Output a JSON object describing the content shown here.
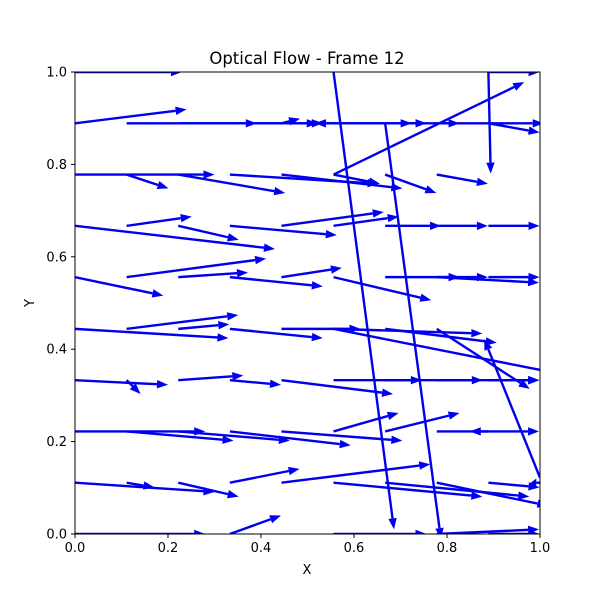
{
  "chart_data": {
    "type": "quiver",
    "title": "Optical Flow - Frame 12",
    "xlabel": "X",
    "ylabel": "Y",
    "xlim": [
      0,
      1
    ],
    "ylim": [
      0,
      1
    ],
    "xticks": [
      "0.0",
      "0.2",
      "0.4",
      "0.6",
      "0.8",
      "1.0"
    ],
    "yticks": [
      "0.0",
      "0.2",
      "0.4",
      "0.6",
      "0.8",
      "1.0"
    ],
    "grid": false,
    "arrow_color": "#0000ee",
    "vectors": [
      {
        "x": 0.0,
        "y": 1.0,
        "u": 0.23,
        "v": 0.0
      },
      {
        "x": 0.0,
        "y": 0.889,
        "u": 0.24,
        "v": 0.03
      },
      {
        "x": 0.111,
        "y": 0.889,
        "u": 0.28,
        "v": 0.0
      },
      {
        "x": 0.222,
        "y": 0.889,
        "u": 0.3,
        "v": 0.0
      },
      {
        "x": 0.333,
        "y": 0.889,
        "u": 0.2,
        "v": 0.0
      },
      {
        "x": 0.444,
        "y": 0.889,
        "u": 0.28,
        "v": 0.0
      },
      {
        "x": 0.444,
        "y": 0.889,
        "u": 0.04,
        "v": 0.01
      },
      {
        "x": 0.556,
        "y": 0.889,
        "u": 0.2,
        "v": 0.0
      },
      {
        "x": 0.556,
        "y": 0.889,
        "u": -0.04,
        "v": 0.0
      },
      {
        "x": 0.667,
        "y": 0.889,
        "u": 0.16,
        "v": 0.0
      },
      {
        "x": 0.778,
        "y": 0.889,
        "u": 0.23,
        "v": 0.0
      },
      {
        "x": 0.889,
        "y": 0.889,
        "u": 0.11,
        "v": -0.02
      },
      {
        "x": 0.667,
        "y": 0.889,
        "u": 0.12,
        "v": -0.9
      },
      {
        "x": 0.556,
        "y": 1.0,
        "u": 0.13,
        "v": -0.99
      },
      {
        "x": 0.556,
        "y": 0.778,
        "u": 0.41,
        "v": 0.2
      },
      {
        "x": 0.889,
        "y": 1.0,
        "u": 0.005,
        "v": -0.22
      },
      {
        "x": 0.889,
        "y": 1.0,
        "u": 0.11,
        "v": 0.0
      },
      {
        "x": 0.0,
        "y": 0.778,
        "u": 0.3,
        "v": 0.0
      },
      {
        "x": 0.111,
        "y": 0.778,
        "u": 0.09,
        "v": -0.03
      },
      {
        "x": 0.222,
        "y": 0.778,
        "u": 0.23,
        "v": -0.04
      },
      {
        "x": 0.333,
        "y": 0.778,
        "u": 0.32,
        "v": -0.02
      },
      {
        "x": 0.444,
        "y": 0.778,
        "u": 0.26,
        "v": -0.03
      },
      {
        "x": 0.556,
        "y": 0.778,
        "u": 0.1,
        "v": -0.02
      },
      {
        "x": 0.667,
        "y": 0.778,
        "u": 0.11,
        "v": -0.04
      },
      {
        "x": 0.778,
        "y": 0.778,
        "u": 0.11,
        "v": -0.02
      },
      {
        "x": 0.0,
        "y": 0.667,
        "u": 0.43,
        "v": -0.05
      },
      {
        "x": 0.111,
        "y": 0.667,
        "u": 0.14,
        "v": 0.02
      },
      {
        "x": 0.222,
        "y": 0.667,
        "u": 0.13,
        "v": -0.03
      },
      {
        "x": 0.333,
        "y": 0.667,
        "u": 0.23,
        "v": -0.02
      },
      {
        "x": 0.444,
        "y": 0.667,
        "u": 0.22,
        "v": 0.03
      },
      {
        "x": 0.556,
        "y": 0.667,
        "u": 0.14,
        "v": 0.02
      },
      {
        "x": 0.667,
        "y": 0.667,
        "u": 0.12,
        "v": 0.0
      },
      {
        "x": 0.778,
        "y": 0.667,
        "u": 0.11,
        "v": 0.0
      },
      {
        "x": 0.889,
        "y": 0.667,
        "u": 0.11,
        "v": 0.0
      },
      {
        "x": 0.0,
        "y": 0.556,
        "u": 0.19,
        "v": -0.04
      },
      {
        "x": 0.111,
        "y": 0.556,
        "u": 0.3,
        "v": 0.04
      },
      {
        "x": 0.222,
        "y": 0.556,
        "u": 0.15,
        "v": 0.01
      },
      {
        "x": 0.333,
        "y": 0.556,
        "u": 0.2,
        "v": -0.02
      },
      {
        "x": 0.444,
        "y": 0.556,
        "u": 0.13,
        "v": 0.02
      },
      {
        "x": 0.556,
        "y": 0.556,
        "u": 0.21,
        "v": -0.05
      },
      {
        "x": 0.667,
        "y": 0.556,
        "u": 0.16,
        "v": 0.0
      },
      {
        "x": 0.778,
        "y": 0.556,
        "u": 0.11,
        "v": 0.0
      },
      {
        "x": 0.889,
        "y": 0.556,
        "u": 0.11,
        "v": 0.0
      },
      {
        "x": 0.778,
        "y": 0.556,
        "u": 0.22,
        "v": -0.012
      },
      {
        "x": 0.0,
        "y": 0.444,
        "u": 0.33,
        "v": -0.02
      },
      {
        "x": 0.111,
        "y": 0.444,
        "u": 0.24,
        "v": 0.03
      },
      {
        "x": 0.222,
        "y": 0.444,
        "u": 0.11,
        "v": 0.01
      },
      {
        "x": 0.333,
        "y": 0.444,
        "u": 0.2,
        "v": -0.02
      },
      {
        "x": 0.444,
        "y": 0.444,
        "u": 0.17,
        "v": 0.0
      },
      {
        "x": 0.556,
        "y": 0.444,
        "u": 0.32,
        "v": -0.01
      },
      {
        "x": 0.667,
        "y": 0.444,
        "u": 0.24,
        "v": -0.03
      },
      {
        "x": 0.778,
        "y": 0.444,
        "u": 0.2,
        "v": -0.13
      },
      {
        "x": 0.556,
        "y": 0.444,
        "u": 0.5,
        "v": -0.1
      },
      {
        "x": 0.0,
        "y": 0.333,
        "u": 0.2,
        "v": -0.01
      },
      {
        "x": 0.111,
        "y": 0.333,
        "u": 0.03,
        "v": -0.03
      },
      {
        "x": 0.222,
        "y": 0.333,
        "u": 0.14,
        "v": 0.01
      },
      {
        "x": 0.333,
        "y": 0.333,
        "u": 0.11,
        "v": -0.01
      },
      {
        "x": 0.444,
        "y": 0.333,
        "u": 0.24,
        "v": -0.03
      },
      {
        "x": 0.556,
        "y": 0.333,
        "u": 0.19,
        "v": 0.0
      },
      {
        "x": 0.667,
        "y": 0.333,
        "u": 0.21,
        "v": 0.0
      },
      {
        "x": 0.778,
        "y": 0.333,
        "u": 0.22,
        "v": 0.0
      },
      {
        "x": 0.889,
        "y": 0.333,
        "u": 0.11,
        "v": 0.0
      },
      {
        "x": 0.0,
        "y": 0.222,
        "u": 0.28,
        "v": 0.0
      },
      {
        "x": 0.111,
        "y": 0.222,
        "u": 0.23,
        "v": -0.02
      },
      {
        "x": 0.222,
        "y": 0.222,
        "u": 0.24,
        "v": -0.02
      },
      {
        "x": 0.333,
        "y": 0.222,
        "u": 0.26,
        "v": -0.03
      },
      {
        "x": 0.444,
        "y": 0.222,
        "u": 0.26,
        "v": -0.02
      },
      {
        "x": 0.556,
        "y": 0.222,
        "u": 0.14,
        "v": 0.04
      },
      {
        "x": 0.667,
        "y": 0.222,
        "u": 0.16,
        "v": 0.04
      },
      {
        "x": 0.778,
        "y": 0.222,
        "u": 0.22,
        "v": 0.0
      },
      {
        "x": 0.889,
        "y": 0.222,
        "u": -0.04,
        "v": 0.0
      },
      {
        "x": 0.0,
        "y": 0.111,
        "u": 0.3,
        "v": -0.02
      },
      {
        "x": 0.111,
        "y": 0.111,
        "u": 0.06,
        "v": -0.01
      },
      {
        "x": 0.222,
        "y": 0.111,
        "u": 0.13,
        "v": -0.03
      },
      {
        "x": 0.333,
        "y": 0.111,
        "u": 0.15,
        "v": 0.03
      },
      {
        "x": 0.444,
        "y": 0.111,
        "u": 0.32,
        "v": 0.04
      },
      {
        "x": 0.556,
        "y": 0.111,
        "u": 0.32,
        "v": -0.03
      },
      {
        "x": 0.667,
        "y": 0.111,
        "u": 0.31,
        "v": -0.03
      },
      {
        "x": 0.778,
        "y": 0.111,
        "u": 0.24,
        "v": -0.05
      },
      {
        "x": 0.889,
        "y": 0.111,
        "u": 0.11,
        "v": -0.01
      },
      {
        "x": 0.0,
        "y": 0.0,
        "u": 0.28,
        "v": 0.0
      },
      {
        "x": 0.333,
        "y": 0.0,
        "u": 0.11,
        "v": 0.04
      },
      {
        "x": 0.556,
        "y": 0.0,
        "u": 0.2,
        "v": 0.0
      },
      {
        "x": 0.778,
        "y": 0.0,
        "u": 0.22,
        "v": 0.01
      },
      {
        "x": 0.889,
        "y": 0.0,
        "u": 0.11,
        "v": 0.0
      },
      {
        "x": 1.0,
        "y": 0.111,
        "u": -0.02,
        "v": 0.0
      },
      {
        "x": 1.0,
        "y": 0.122,
        "u": -0.12,
        "v": 0.3
      }
    ]
  }
}
